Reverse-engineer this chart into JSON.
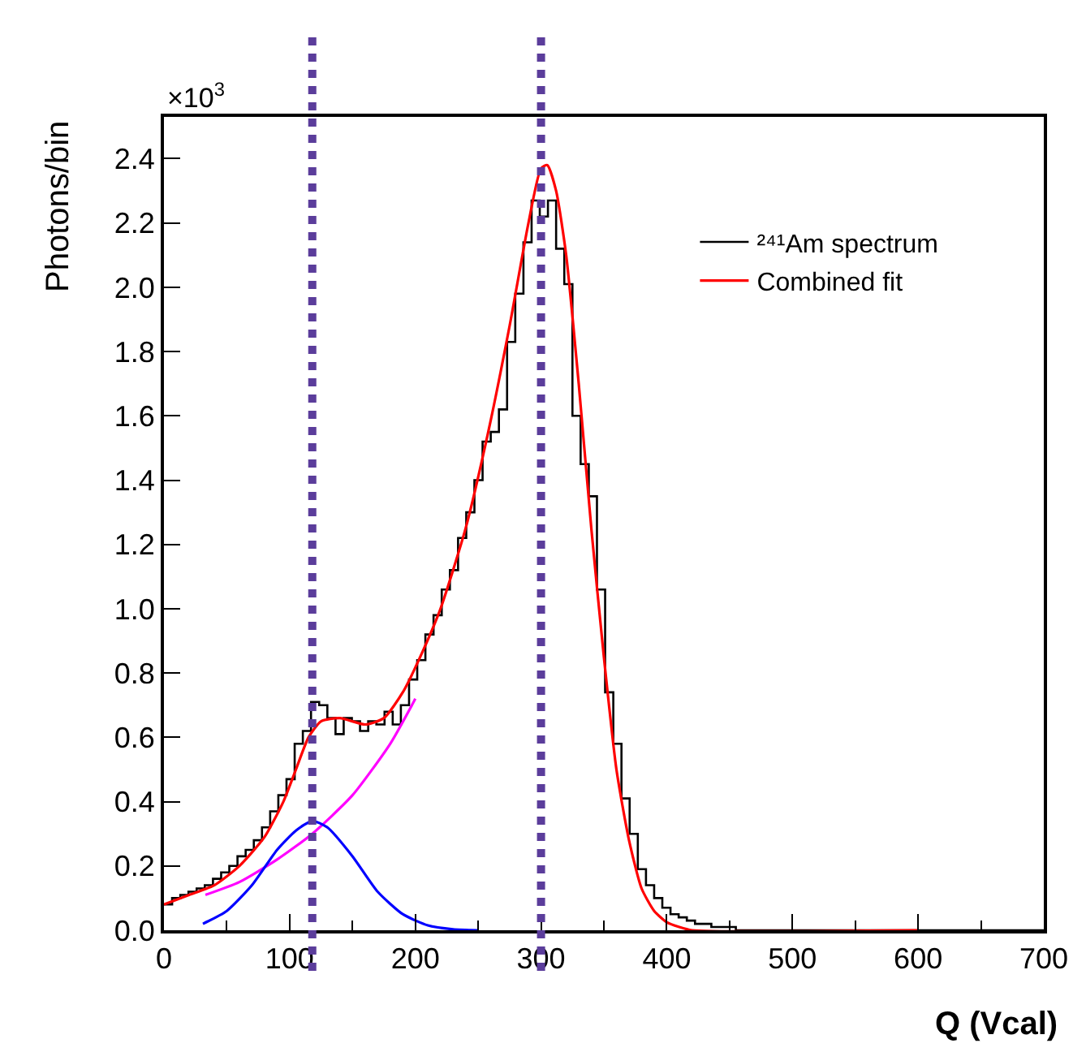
{
  "chart_data": {
    "type": "histogram",
    "xlabel": "Q (Vcal)",
    "ylabel": "Photons/bin",
    "annotations": [
      "×10$^{3}$"
    ],
    "xlim": [
      0,
      700
    ],
    "xticks": [
      0,
      100,
      200,
      300,
      400,
      500,
      600,
      700
    ],
    "ylim": [
      0,
      2.53
    ],
    "yticks": [
      {
        "value": 0,
        "label": "0.0"
      },
      0.2,
      0.4,
      0.6,
      0.8,
      {
        "value": 1,
        "label": "1.0"
      },
      1.2,
      1.4,
      1.6,
      1.8,
      {
        "value": 2,
        "label": "2.0"
      },
      2.2,
      2.4
    ],
    "legend": "top right",
    "ref_lines": [
      {
        "axis": "x",
        "value": 118,
        "label": null,
        "color": "#5b3d9b",
        "line_style": "dotted"
      },
      {
        "axis": "x",
        "value": 300,
        "label": null,
        "color": "#5b3d9b",
        "line_style": "dotted"
      }
    ],
    "series": [
      {
        "name": "²⁴¹Am spectrum",
        "color": "#000000",
        "bins": [
          0,
          6.5,
          13,
          19.5,
          26,
          32.5,
          39,
          45.5,
          52,
          58.5,
          65,
          71.5,
          78,
          84.5,
          91,
          97.5,
          104,
          110.5,
          117,
          123.5,
          130,
          136.5,
          143,
          149.5,
          156,
          162.5,
          169,
          175.5,
          182,
          188.5,
          195,
          201.5,
          208,
          214.5,
          221,
          227.5,
          234,
          240.5,
          247,
          253.5,
          260,
          266.5,
          273,
          279.5,
          286,
          292.5,
          299,
          305.5,
          312,
          318.5,
          325,
          331.5,
          338,
          344.5,
          351,
          357.5,
          364,
          370.5,
          377,
          383.5,
          390,
          396.5,
          403,
          409.5,
          416,
          422.5,
          429,
          435.5,
          442,
          448.5,
          455,
          700
        ],
        "values": [
          0.08,
          0.1,
          0.11,
          0.12,
          0.13,
          0.14,
          0.16,
          0.18,
          0.2,
          0.23,
          0.25,
          0.28,
          0.32,
          0.37,
          0.42,
          0.47,
          0.58,
          0.62,
          0.71,
          0.7,
          0.66,
          0.61,
          0.66,
          0.65,
          0.62,
          0.65,
          0.64,
          0.68,
          0.64,
          0.7,
          0.78,
          0.84,
          0.92,
          0.98,
          1.06,
          1.12,
          1.22,
          1.3,
          1.4,
          1.52,
          1.55,
          1.62,
          1.83,
          1.98,
          2.14,
          2.27,
          2.22,
          2.27,
          2.12,
          2.01,
          1.6,
          1.45,
          1.35,
          1.06,
          0.74,
          0.58,
          0.41,
          0.3,
          0.19,
          0.14,
          0.1,
          0.07,
          0.05,
          0.04,
          0.03,
          0.02,
          0.02,
          0.01,
          0.01,
          0.01,
          0
        ]
      },
      {
        "name": "Combined fit",
        "type": "line",
        "color": "#ff0000",
        "x": [
          0,
          20,
          40,
          60,
          80,
          95,
          105,
          115,
          125,
          140,
          160,
          175,
          190,
          205,
          220,
          240,
          258,
          275,
          290,
          300,
          305,
          312,
          320,
          330,
          340,
          350,
          360,
          370,
          380,
          390,
          400,
          410,
          420,
          600
        ],
        "values": [
          0.08,
          0.11,
          0.14,
          0.2,
          0.29,
          0.4,
          0.5,
          0.6,
          0.65,
          0.66,
          0.64,
          0.66,
          0.74,
          0.86,
          1.0,
          1.25,
          1.55,
          1.88,
          2.2,
          2.37,
          2.38,
          2.3,
          2.1,
          1.7,
          1.25,
          0.85,
          0.5,
          0.28,
          0.13,
          0.06,
          0.025,
          0.01,
          0,
          0
        ]
      },
      {
        "type": "line",
        "color": "#ff00ff",
        "x": [
          33,
          60,
          90,
          118,
          150,
          180,
          200
        ],
        "values": [
          0.11,
          0.15,
          0.22,
          0.3,
          0.42,
          0.58,
          0.72
        ]
      },
      {
        "type": "line",
        "color": "#0000ff",
        "x": [
          31,
          50,
          70,
          90,
          105,
          118,
          130,
          150,
          170,
          190,
          210,
          230,
          250
        ],
        "values": [
          0.02,
          0.06,
          0.14,
          0.25,
          0.31,
          0.34,
          0.32,
          0.23,
          0.12,
          0.05,
          0.015,
          0.003,
          0
        ]
      }
    ]
  }
}
